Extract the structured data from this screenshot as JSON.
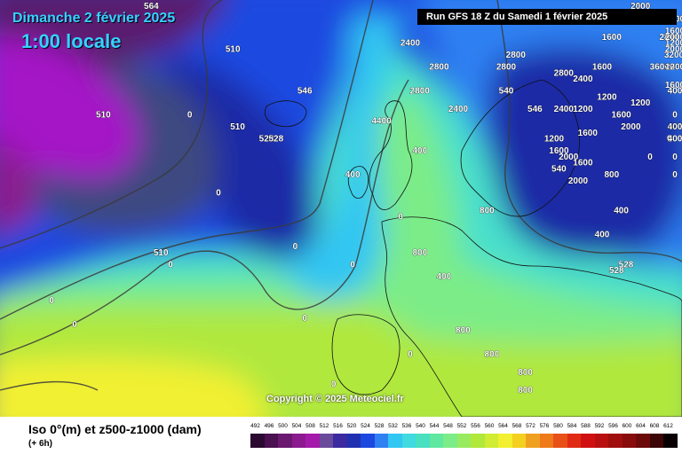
{
  "header": {
    "date": "Dimanche 2 février 2025",
    "time": "1:00 locale",
    "run": "Run GFS 18 Z du Samedi 1 février 2025"
  },
  "footer": {
    "parameter": "Iso 0°(m) et z500-z1000 (dam)",
    "step": "(+ 6h)",
    "copyright": "Copyright © 2025 Meteociel.fr"
  },
  "colors": {
    "deep_purple": "#5a1e6e",
    "magenta": "#a414c6",
    "dark_slate": "#3c4a80",
    "navy": "#1a2aa6",
    "blue": "#1c48e0",
    "mid_blue": "#2f80f2",
    "cyan": "#32c6f2",
    "aqua": "#48e0cc",
    "light_green": "#7cec88",
    "yellow_green": "#b0e83c",
    "yellow": "#f2f030",
    "orange": "#f0a020"
  },
  "legend": {
    "ticks": [
      "492",
      "496",
      "500",
      "504",
      "508",
      "512",
      "516",
      "520",
      "524",
      "528",
      "532",
      "536",
      "540",
      "544",
      "548",
      "552",
      "556",
      "560",
      "564",
      "568",
      "572",
      "576",
      "580",
      "584",
      "588",
      "592",
      "596",
      "600",
      "604",
      "608",
      "612"
    ],
    "colors": [
      "#2a0a30",
      "#4a1050",
      "#6a1870",
      "#8a1a8e",
      "#a41aaa",
      "#6a4a9a",
      "#3c2aa0",
      "#2030b0",
      "#1c48e0",
      "#2f80f2",
      "#32c6f2",
      "#40dae0",
      "#48e0c0",
      "#60e8a0",
      "#7cec88",
      "#98ea60",
      "#b0e83c",
      "#d0ec34",
      "#f2f030",
      "#f4d020",
      "#f0a020",
      "#ee7a1a",
      "#e85018",
      "#e02a14",
      "#d01010",
      "#b81010",
      "#a00e0e",
      "#880c0c",
      "#6c0a0a",
      "#3c0606",
      "#080000"
    ]
  },
  "iso0_labels": [
    {
      "x": 2.6,
      "y": 42.5,
      "text": "0"
    },
    {
      "x": 5.0,
      "y": 40.5,
      "text": "0"
    },
    {
      "x": 15.0,
      "y": 45.5,
      "text": "0"
    },
    {
      "x": 20.0,
      "y": 51.5,
      "text": "0"
    },
    {
      "x": 17.0,
      "y": 58.0,
      "text": "0"
    },
    {
      "x": 28.0,
      "y": 47.0,
      "text": "0"
    },
    {
      "x": 29.0,
      "y": 41.0,
      "text": "0"
    },
    {
      "x": 34.0,
      "y": 45.5,
      "text": "0"
    },
    {
      "x": 32.0,
      "y": 35.5,
      "text": "0"
    },
    {
      "x": 37.0,
      "y": 57.5,
      "text": "4400"
    },
    {
      "x": 41.0,
      "y": 55.0,
      "text": "400"
    },
    {
      "x": 41.0,
      "y": 46.5,
      "text": "800"
    },
    {
      "x": 43.5,
      "y": 44.5,
      "text": "400"
    },
    {
      "x": 48.0,
      "y": 50.0,
      "text": "800"
    },
    {
      "x": 34.0,
      "y": 53.0,
      "text": "400"
    },
    {
      "x": 39.0,
      "y": 49.5,
      "text": "0"
    },
    {
      "x": 40.0,
      "y": 38.0,
      "text": "0"
    },
    {
      "x": 45.5,
      "y": 40.0,
      "text": "800"
    },
    {
      "x": 48.5,
      "y": 38.0,
      "text": "800"
    },
    {
      "x": 52.0,
      "y": 36.5,
      "text": "800"
    },
    {
      "x": 52.0,
      "y": 35.0,
      "text": "800"
    },
    {
      "x": 40.0,
      "y": 64.0,
      "text": "2400"
    },
    {
      "x": 43.0,
      "y": 62.0,
      "text": "2800"
    },
    {
      "x": 50.0,
      "y": 62.0,
      "text": "2800"
    },
    {
      "x": 45.0,
      "y": 58.5,
      "text": "2400"
    },
    {
      "x": 41.0,
      "y": 60.0,
      "text": "2800"
    },
    {
      "x": 51.0,
      "y": 63.0,
      "text": "2800"
    },
    {
      "x": 56.0,
      "y": 61.5,
      "text": "2800"
    },
    {
      "x": 58.0,
      "y": 61.0,
      "text": "2400"
    },
    {
      "x": 56.0,
      "y": 58.5,
      "text": "2400"
    },
    {
      "x": 55.0,
      "y": 56.0,
      "text": "1200"
    },
    {
      "x": 55.5,
      "y": 55.0,
      "text": "1600"
    },
    {
      "x": 56.5,
      "y": 54.5,
      "text": "2000"
    },
    {
      "x": 57.5,
      "y": 52.5,
      "text": "2000"
    },
    {
      "x": 58.0,
      "y": 54.0,
      "text": "1600"
    },
    {
      "x": 58.5,
      "y": 56.5,
      "text": "1600"
    },
    {
      "x": 58.0,
      "y": 58.5,
      "text": "1200"
    },
    {
      "x": 62.0,
      "y": 58.0,
      "text": "1600"
    },
    {
      "x": 63.0,
      "y": 57.0,
      "text": "2000"
    },
    {
      "x": 64.0,
      "y": 59.0,
      "text": "1200"
    },
    {
      "x": 60.0,
      "y": 62.0,
      "text": "1600"
    },
    {
      "x": 60.5,
      "y": 59.5,
      "text": "1200"
    },
    {
      "x": 61.0,
      "y": 64.5,
      "text": "1600"
    },
    {
      "x": 62.0,
      "y": 66.0,
      "text": "2000"
    },
    {
      "x": 64.0,
      "y": 68.5,
      "text": "2000"
    },
    {
      "x": 66.5,
      "y": 66.5,
      "text": "2400"
    },
    {
      "x": 67.0,
      "y": 64.5,
      "text": "2800"
    },
    {
      "x": 67.5,
      "y": 63.0,
      "text": "3200"
    },
    {
      "x": 66.0,
      "y": 62.0,
      "text": "3600"
    },
    {
      "x": 64.0,
      "y": 70.0,
      "text": "2000"
    },
    {
      "x": 70.0,
      "y": 64.0,
      "text": "1200"
    },
    {
      "x": 71.5,
      "y": 60.5,
      "text": "1600"
    },
    {
      "x": 72.0,
      "y": 62.0,
      "text": "2000"
    },
    {
      "x": 60.0,
      "y": 48.0,
      "text": "400"
    },
    {
      "x": 61.0,
      "y": 53.0,
      "text": "800"
    },
    {
      "x": 62.0,
      "y": 50.0,
      "text": "400"
    },
    {
      "x": 65.0,
      "y": 54.5,
      "text": "0"
    },
    {
      "x": 67.0,
      "y": 56.0,
      "text": "0"
    },
    {
      "x": 70.0,
      "y": 54.5,
      "text": "0"
    },
    {
      "x": 74.0,
      "y": 57.0,
      "text": "0"
    },
    {
      "x": 76.0,
      "y": 58.0,
      "text": "0"
    },
    {
      "x": 73.0,
      "y": 60.0,
      "text": "400"
    },
    {
      "x": 78.0,
      "y": 57.0,
      "text": "400"
    },
    {
      "x": 82.0,
      "y": 57.0,
      "text": "400"
    },
    {
      "x": 85.0,
      "y": 56.0,
      "text": "400"
    },
    {
      "x": 86.0,
      "y": 53.0,
      "text": "0"
    },
    {
      "x": 85.0,
      "y": 62.0,
      "text": "1200"
    },
    {
      "x": 83.0,
      "y": 66.0,
      "text": "1600"
    },
    {
      "x": 86.0,
      "y": 64.5,
      "text": "2000"
    },
    {
      "x": 88.0,
      "y": 66.0,
      "text": "2400"
    },
    {
      "x": 90.0,
      "y": 65.0,
      "text": "1600"
    },
    {
      "x": 75.0,
      "y": 63.5,
      "text": "2000"
    }
  ],
  "thickness_labels": [
    {
      "x": 8.0,
      "y": 58.0,
      "text": "510"
    },
    {
      "x": 14.0,
      "y": 46.5,
      "text": "510"
    },
    {
      "x": 22.0,
      "y": 57.0,
      "text": "510"
    },
    {
      "x": 21.5,
      "y": 63.5,
      "text": "510"
    },
    {
      "x": 25.0,
      "y": 56.0,
      "text": "528"
    },
    {
      "x": 26.0,
      "y": 56.0,
      "text": "528"
    },
    {
      "x": 29.0,
      "y": 60.0,
      "text": "546"
    },
    {
      "x": 50.0,
      "y": 60.0,
      "text": "540"
    },
    {
      "x": 53.0,
      "y": 58.5,
      "text": "546"
    },
    {
      "x": 55.5,
      "y": 53.5,
      "text": "540"
    },
    {
      "x": 61.5,
      "y": 45.0,
      "text": "528"
    },
    {
      "x": 62.5,
      "y": 45.5,
      "text": "528"
    },
    {
      "x": 13.0,
      "y": 68.5,
      "text": "564"
    }
  ]
}
